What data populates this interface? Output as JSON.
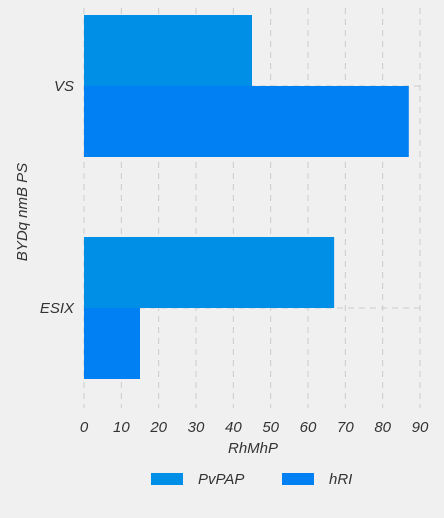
{
  "chart_data": {
    "type": "bar",
    "orientation": "horizontal",
    "categories": [
      "VS",
      "ESIX"
    ],
    "series": [
      {
        "name": "PvPAP",
        "values": [
          45,
          67
        ],
        "color": "#008fe6"
      },
      {
        "name": "hRI",
        "values": [
          87,
          15
        ],
        "color": "#0080f2"
      }
    ],
    "xlabel": "RhMhP",
    "ylabel": "BYDq nmB PS",
    "xlim": [
      0,
      90
    ],
    "xticks": [
      "0",
      "10",
      "20",
      "30",
      "40",
      "50",
      "60",
      "70",
      "80",
      "90"
    ],
    "grid": true,
    "legend_position": "bottom"
  },
  "colors": {
    "background": "#f0f0f0",
    "plot_background": "#f0f0f0",
    "grid": "#cbcbcb"
  }
}
